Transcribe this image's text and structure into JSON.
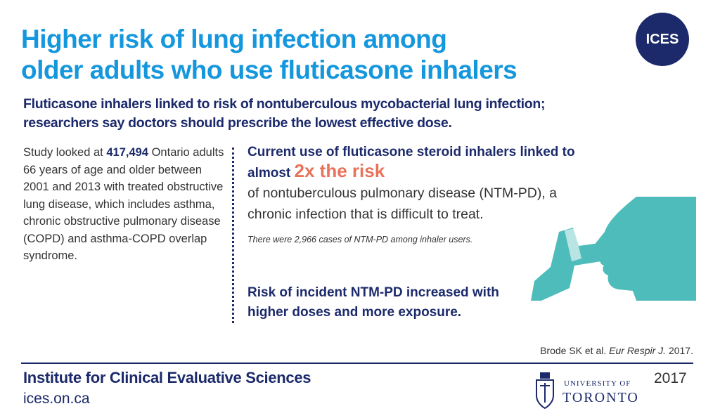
{
  "logo": "ICES",
  "title": [
    "Higher risk of lung infection among",
    "older adults who use fluticasone inhalers"
  ],
  "subtitle": [
    "Fluticasone inhalers linked to risk of nontuberculous mycobacterial lung infection;",
    "researchers say doctors should prescribe the lowest effective dose."
  ],
  "study": {
    "before": "Study looked at",
    "number": "417,494",
    "after": "Ontario adults 66 years of age and older between 2001 and 2013 with treated obstructive lung disease, which includes asthma, chronic obstructive pulmonary disease (COPD) and asthma-COPD overlap syndrome."
  },
  "finding1": {
    "lead": "Current use of fluticasone steroid inhalers linked to almost",
    "highlight": "2x the risk",
    "rest": "of nontuberculous pulmonary disease (NTM-PD), a chronic infection that is difficult to treat.",
    "note": "There were 2,966 cases of NTM-PD among inhaler users."
  },
  "finding2": "Risk of incident NTM-PD increased with higher doses and more exposure.",
  "citation": {
    "authors": "Brode SK et al.",
    "journal": "Eur Respir J.",
    "year": "2017."
  },
  "footer": {
    "org": "Institute for Clinical Evaluative Sciences",
    "url": "ices.on.ca",
    "year": "2017",
    "university": [
      "UNIVERSITY OF",
      "TORONTO"
    ]
  }
}
